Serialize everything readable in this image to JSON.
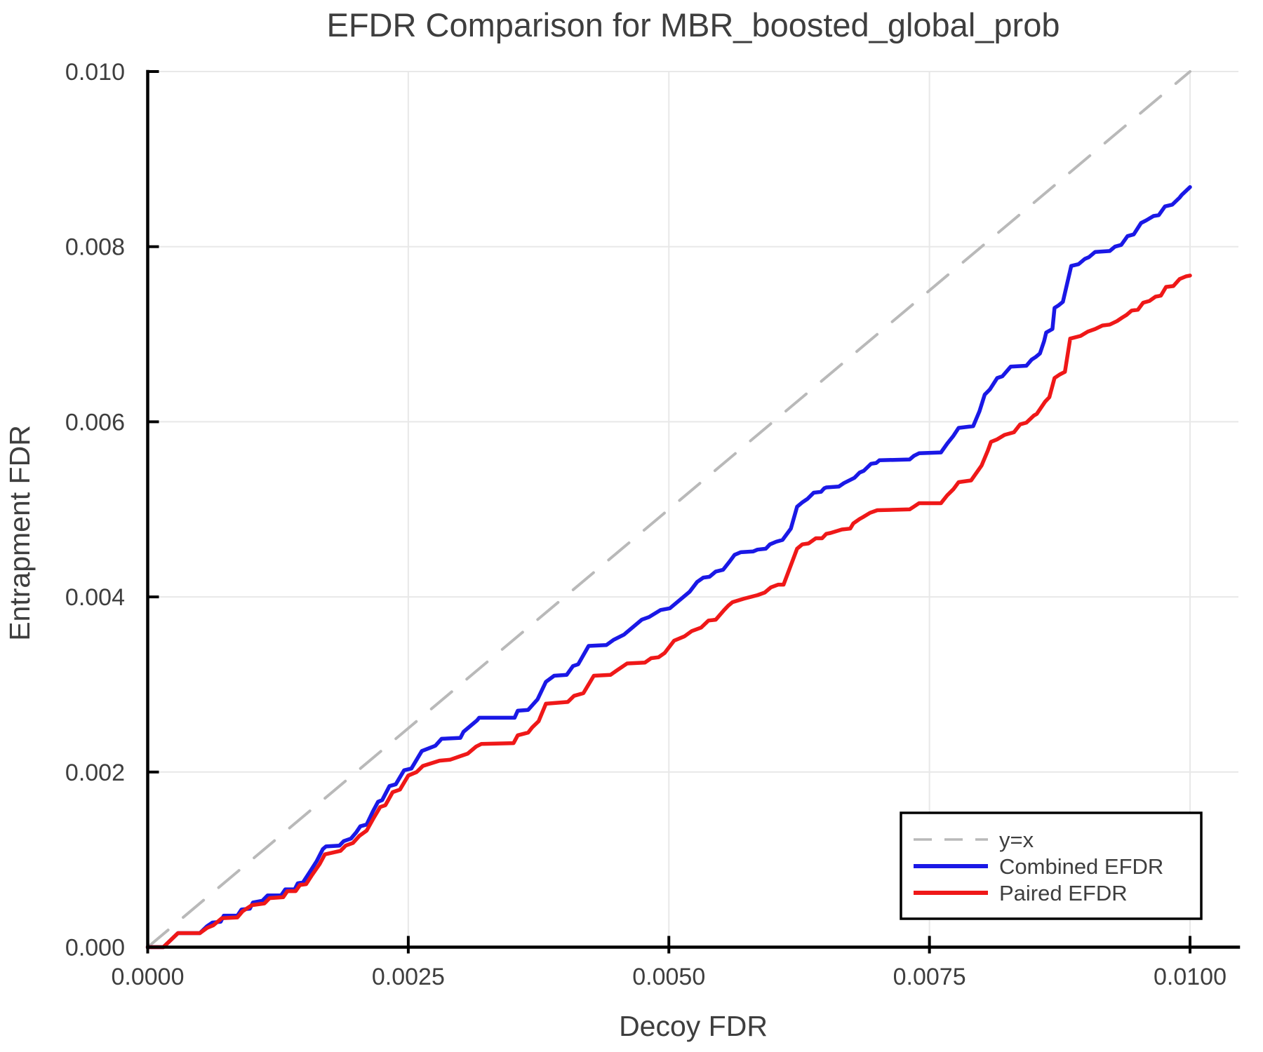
{
  "chart_data": {
    "type": "line",
    "title": "EFDR Comparison for MBR_boosted_global_prob",
    "xlabel": "Decoy FDR",
    "ylabel": "Entrapment FDR",
    "xlim": [
      0,
      0.0105
    ],
    "ylim": [
      0,
      0.01
    ],
    "grid": true,
    "xticks": {
      "values": [
        0,
        0.0025,
        0.005,
        0.0075,
        0.01
      ],
      "labels": [
        "0.0000",
        "0.0025",
        "0.0050",
        "0.0075",
        "0.0100"
      ]
    },
    "yticks": {
      "values": [
        0,
        0.002,
        0.004,
        0.006,
        0.008,
        0.01
      ],
      "labels": [
        "0.000",
        "0.002",
        "0.004",
        "0.006",
        "0.008",
        "0.010"
      ]
    },
    "colors": {
      "identity": "#b9b9b9",
      "combined": "#1a18e6",
      "paired": "#ef1818",
      "grid": "#e8e8e8",
      "axis": "#000000",
      "text": "#3e3e3e",
      "background": "#ffffff"
    },
    "legend": {
      "position": "bottom-right",
      "entries": [
        {
          "label": "y=x",
          "series": "identity",
          "dashed": true
        },
        {
          "label": "Combined EFDR",
          "series": "combined",
          "dashed": false
        },
        {
          "label": "Paired EFDR",
          "series": "paired",
          "dashed": false
        }
      ]
    },
    "series": [
      {
        "name": "y=x",
        "key": "identity",
        "style": "dashed",
        "points": [
          [
            0,
            0
          ],
          [
            0.01,
            0.01
          ]
        ]
      },
      {
        "name": "Combined EFDR",
        "key": "combined",
        "style": "solid",
        "points": [
          [
            0,
            0
          ],
          [
            0.00015,
            0
          ],
          [
            0.00029,
            0.00016
          ],
          [
            0.0005,
            0.00016
          ],
          [
            0.00057,
            0.00024
          ],
          [
            0.00062,
            0.00028
          ],
          [
            0.0007,
            0.00029
          ],
          [
            0.00073,
            0.00036
          ],
          [
            0.00086,
            0.00036
          ],
          [
            0.0009,
            0.00043
          ],
          [
            0.00098,
            0.00044
          ],
          [
            0.00101,
            0.00051
          ],
          [
            0.0011,
            0.00053
          ],
          [
            0.00115,
            0.00059
          ],
          [
            0.00128,
            0.00059
          ],
          [
            0.00132,
            0.00066
          ],
          [
            0.00141,
            0.00066
          ],
          [
            0.00144,
            0.00073
          ],
          [
            0.00149,
            0.00074
          ],
          [
            0.00155,
            0.00085
          ],
          [
            0.00162,
            0.00098
          ],
          [
            0.00168,
            0.00112
          ],
          [
            0.00171,
            0.00115
          ],
          [
            0.00184,
            0.00116
          ],
          [
            0.00188,
            0.00121
          ],
          [
            0.00195,
            0.00124
          ],
          [
            0.002,
            0.00131
          ],
          [
            0.00204,
            0.00138
          ],
          [
            0.0021,
            0.0014
          ],
          [
            0.00216,
            0.00155
          ],
          [
            0.00221,
            0.00166
          ],
          [
            0.00225,
            0.00168
          ],
          [
            0.00232,
            0.00184
          ],
          [
            0.00238,
            0.00186
          ],
          [
            0.00246,
            0.00202
          ],
          [
            0.00253,
            0.00204
          ],
          [
            0.0026,
            0.00218
          ],
          [
            0.00263,
            0.00224
          ],
          [
            0.00276,
            0.0023
          ],
          [
            0.00282,
            0.00238
          ],
          [
            0.003,
            0.00239
          ],
          [
            0.00303,
            0.00246
          ],
          [
            0.00308,
            0.00251
          ],
          [
            0.00316,
            0.00259
          ],
          [
            0.00318,
            0.00262
          ],
          [
            0.00352,
            0.00262
          ],
          [
            0.00355,
            0.0027
          ],
          [
            0.00365,
            0.00271
          ],
          [
            0.00374,
            0.00283
          ],
          [
            0.00382,
            0.00303
          ],
          [
            0.0039,
            0.0031
          ],
          [
            0.00402,
            0.00311
          ],
          [
            0.00408,
            0.00321
          ],
          [
            0.00413,
            0.00323
          ],
          [
            0.00423,
            0.00344
          ],
          [
            0.0044,
            0.00345
          ],
          [
            0.00447,
            0.00351
          ],
          [
            0.00457,
            0.00357
          ],
          [
            0.00474,
            0.00374
          ],
          [
            0.00481,
            0.00377
          ],
          [
            0.00492,
            0.00385
          ],
          [
            0.00501,
            0.00387
          ],
          [
            0.0052,
            0.00406
          ],
          [
            0.00527,
            0.00417
          ],
          [
            0.00533,
            0.00422
          ],
          [
            0.00539,
            0.00423
          ],
          [
            0.00545,
            0.00429
          ],
          [
            0.00552,
            0.00431
          ],
          [
            0.00558,
            0.0044
          ],
          [
            0.00563,
            0.00448
          ],
          [
            0.00569,
            0.00451
          ],
          [
            0.00581,
            0.00452
          ],
          [
            0.00585,
            0.00454
          ],
          [
            0.00593,
            0.00455
          ],
          [
            0.00597,
            0.0046
          ],
          [
            0.00603,
            0.00463
          ],
          [
            0.00609,
            0.00465
          ],
          [
            0.00617,
            0.00478
          ],
          [
            0.00623,
            0.00503
          ],
          [
            0.00628,
            0.00508
          ],
          [
            0.00633,
            0.00512
          ],
          [
            0.00639,
            0.00519
          ],
          [
            0.00646,
            0.0052
          ],
          [
            0.00649,
            0.00524
          ],
          [
            0.00651,
            0.00525
          ],
          [
            0.00663,
            0.00526
          ],
          [
            0.00668,
            0.0053
          ],
          [
            0.00678,
            0.00536
          ],
          [
            0.00683,
            0.00542
          ],
          [
            0.00687,
            0.00544
          ],
          [
            0.00694,
            0.00552
          ],
          [
            0.00699,
            0.00553
          ],
          [
            0.00702,
            0.00556
          ],
          [
            0.00731,
            0.00557
          ],
          [
            0.00735,
            0.00561
          ],
          [
            0.0074,
            0.00564
          ],
          [
            0.00761,
            0.00565
          ],
          [
            0.00767,
            0.00575
          ],
          [
            0.00773,
            0.00584
          ],
          [
            0.00778,
            0.00593
          ],
          [
            0.00792,
            0.00595
          ],
          [
            0.00798,
            0.00612
          ],
          [
            0.00803,
            0.00631
          ],
          [
            0.00808,
            0.00637
          ],
          [
            0.00815,
            0.0065
          ],
          [
            0.0082,
            0.00652
          ],
          [
            0.00828,
            0.00663
          ],
          [
            0.00843,
            0.00664
          ],
          [
            0.00848,
            0.00671
          ],
          [
            0.00852,
            0.00674
          ],
          [
            0.00856,
            0.00678
          ],
          [
            0.0086,
            0.00692
          ],
          [
            0.00862,
            0.00702
          ],
          [
            0.00868,
            0.00706
          ],
          [
            0.0087,
            0.0073
          ],
          [
            0.00874,
            0.00733
          ],
          [
            0.00878,
            0.00737
          ],
          [
            0.00886,
            0.00778
          ],
          [
            0.00893,
            0.0078
          ],
          [
            0.00899,
            0.00786
          ],
          [
            0.00903,
            0.00788
          ],
          [
            0.00909,
            0.00794
          ],
          [
            0.00923,
            0.00795
          ],
          [
            0.00928,
            0.008
          ],
          [
            0.00934,
            0.00802
          ],
          [
            0.0094,
            0.00812
          ],
          [
            0.00946,
            0.00814
          ],
          [
            0.00953,
            0.00827
          ],
          [
            0.00958,
            0.0083
          ],
          [
            0.00965,
            0.00835
          ],
          [
            0.0097,
            0.00836
          ],
          [
            0.00976,
            0.00846
          ],
          [
            0.00983,
            0.00848
          ],
          [
            0.0099,
            0.00856
          ],
          [
            0.00992,
            0.00859
          ],
          [
            0.01,
            0.00868
          ]
        ]
      },
      {
        "name": "Paired EFDR",
        "key": "paired",
        "style": "solid",
        "points": [
          [
            0,
            0
          ],
          [
            0.00015,
            0
          ],
          [
            0.00029,
            0.00016
          ],
          [
            0.0005,
            0.00016
          ],
          [
            0.00057,
            0.00022
          ],
          [
            0.00063,
            0.00025
          ],
          [
            0.00071,
            0.00033
          ],
          [
            0.00086,
            0.00034
          ],
          [
            0.00091,
            0.00041
          ],
          [
            0.001,
            0.00048
          ],
          [
            0.00112,
            0.0005
          ],
          [
            0.00117,
            0.00056
          ],
          [
            0.0013,
            0.00057
          ],
          [
            0.00134,
            0.00064
          ],
          [
            0.00142,
            0.00064
          ],
          [
            0.00146,
            0.00071
          ],
          [
            0.00152,
            0.00072
          ],
          [
            0.00158,
            0.00083
          ],
          [
            0.00165,
            0.00095
          ],
          [
            0.0017,
            0.00106
          ],
          [
            0.00185,
            0.0011
          ],
          [
            0.0019,
            0.00116
          ],
          [
            0.00197,
            0.00119
          ],
          [
            0.00203,
            0.00127
          ],
          [
            0.0021,
            0.00133
          ],
          [
            0.00217,
            0.00148
          ],
          [
            0.00223,
            0.0016
          ],
          [
            0.00228,
            0.00162
          ],
          [
            0.00235,
            0.00177
          ],
          [
            0.00242,
            0.0018
          ],
          [
            0.0025,
            0.00196
          ],
          [
            0.00258,
            0.002
          ],
          [
            0.00264,
            0.00207
          ],
          [
            0.0028,
            0.00213
          ],
          [
            0.0029,
            0.00214
          ],
          [
            0.00302,
            0.00219
          ],
          [
            0.00307,
            0.00221
          ],
          [
            0.00315,
            0.00229
          ],
          [
            0.0032,
            0.00232
          ],
          [
            0.00351,
            0.00233
          ],
          [
            0.00355,
            0.00242
          ],
          [
            0.00365,
            0.00245
          ],
          [
            0.00369,
            0.00251
          ],
          [
            0.00375,
            0.00258
          ],
          [
            0.00382,
            0.00278
          ],
          [
            0.00403,
            0.0028
          ],
          [
            0.00409,
            0.00287
          ],
          [
            0.00418,
            0.0029
          ],
          [
            0.00428,
            0.0031
          ],
          [
            0.00444,
            0.00311
          ],
          [
            0.0045,
            0.00316
          ],
          [
            0.0046,
            0.00324
          ],
          [
            0.00477,
            0.00325
          ],
          [
            0.00483,
            0.0033
          ],
          [
            0.0049,
            0.00331
          ],
          [
            0.00496,
            0.00336
          ],
          [
            0.00505,
            0.0035
          ],
          [
            0.00515,
            0.00355
          ],
          [
            0.00522,
            0.00361
          ],
          [
            0.00531,
            0.00365
          ],
          [
            0.00538,
            0.00373
          ],
          [
            0.00545,
            0.00374
          ],
          [
            0.00553,
            0.00385
          ],
          [
            0.00557,
            0.0039
          ],
          [
            0.00561,
            0.00394
          ],
          [
            0.00572,
            0.00398
          ],
          [
            0.00585,
            0.00402
          ],
          [
            0.00592,
            0.00405
          ],
          [
            0.00598,
            0.00411
          ],
          [
            0.00605,
            0.00414
          ],
          [
            0.0061,
            0.00414
          ],
          [
            0.00623,
            0.00455
          ],
          [
            0.00628,
            0.0046
          ],
          [
            0.00634,
            0.00461
          ],
          [
            0.00641,
            0.00467
          ],
          [
            0.00647,
            0.00467
          ],
          [
            0.00651,
            0.00472
          ],
          [
            0.00655,
            0.00473
          ],
          [
            0.00666,
            0.00477
          ],
          [
            0.00674,
            0.00478
          ],
          [
            0.00677,
            0.00484
          ],
          [
            0.00683,
            0.00489
          ],
          [
            0.00686,
            0.00491
          ],
          [
            0.00693,
            0.00496
          ],
          [
            0.007,
            0.00499
          ],
          [
            0.00731,
            0.005
          ],
          [
            0.00735,
            0.00503
          ],
          [
            0.0074,
            0.00507
          ],
          [
            0.00761,
            0.00507
          ],
          [
            0.00767,
            0.00516
          ],
          [
            0.00773,
            0.00523
          ],
          [
            0.00778,
            0.00531
          ],
          [
            0.0079,
            0.00533
          ],
          [
            0.008,
            0.0055
          ],
          [
            0.00806,
            0.00567
          ],
          [
            0.00809,
            0.00577
          ],
          [
            0.00815,
            0.0058
          ],
          [
            0.00822,
            0.00585
          ],
          [
            0.00831,
            0.00588
          ],
          [
            0.00837,
            0.00597
          ],
          [
            0.00843,
            0.00599
          ],
          [
            0.0085,
            0.00607
          ],
          [
            0.00853,
            0.00609
          ],
          [
            0.00861,
            0.00623
          ],
          [
            0.00865,
            0.00628
          ],
          [
            0.0087,
            0.0065
          ],
          [
            0.00875,
            0.00654
          ],
          [
            0.0088,
            0.00657
          ],
          [
            0.00885,
            0.00695
          ],
          [
            0.00895,
            0.00698
          ],
          [
            0.00902,
            0.00703
          ],
          [
            0.00909,
            0.00706
          ],
          [
            0.00916,
            0.0071
          ],
          [
            0.00923,
            0.00711
          ],
          [
            0.0093,
            0.00715
          ],
          [
            0.00935,
            0.00719
          ],
          [
            0.00939,
            0.00722
          ],
          [
            0.00944,
            0.00727
          ],
          [
            0.0095,
            0.00728
          ],
          [
            0.00955,
            0.00736
          ],
          [
            0.00961,
            0.00738
          ],
          [
            0.00967,
            0.00743
          ],
          [
            0.00972,
            0.00744
          ],
          [
            0.00977,
            0.00754
          ],
          [
            0.00984,
            0.00755
          ],
          [
            0.0099,
            0.00763
          ],
          [
            0.00996,
            0.00766
          ],
          [
            0.01,
            0.00767
          ]
        ]
      }
    ]
  }
}
